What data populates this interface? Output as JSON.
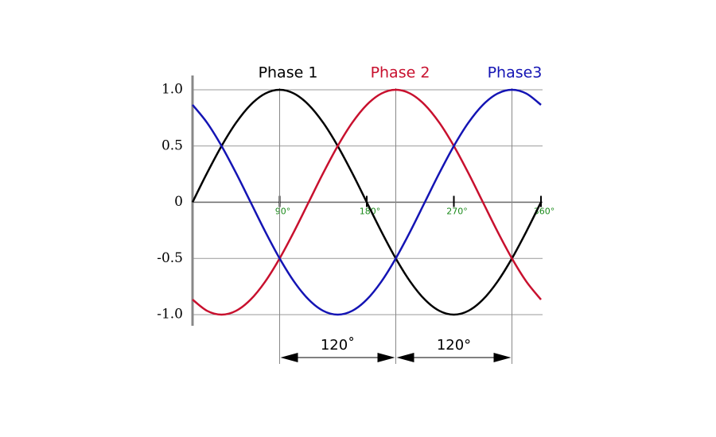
{
  "chart_data": {
    "type": "line",
    "x": [
      0,
      15,
      30,
      45,
      60,
      75,
      90,
      105,
      120,
      135,
      150,
      165,
      180,
      195,
      210,
      225,
      240,
      255,
      270,
      285,
      300,
      315,
      330,
      345,
      360
    ],
    "series": [
      {
        "name": "Phase 1",
        "color": "#000000",
        "values": [
          0,
          0.259,
          0.5,
          0.707,
          0.866,
          0.966,
          1,
          0.966,
          0.866,
          0.707,
          0.5,
          0.259,
          0,
          -0.259,
          -0.5,
          -0.707,
          -0.866,
          -0.966,
          -1,
          -0.966,
          -0.866,
          -0.707,
          -0.5,
          -0.259,
          0
        ]
      },
      {
        "name": "Phase 2",
        "color": "#c8102e",
        "values": [
          -0.866,
          -0.966,
          -1,
          -0.966,
          -0.866,
          -0.707,
          -0.5,
          -0.259,
          0,
          0.259,
          0.5,
          0.707,
          0.866,
          0.966,
          1,
          0.966,
          0.866,
          0.707,
          0.5,
          0.259,
          0,
          -0.259,
          -0.5,
          -0.707,
          -0.866
        ]
      },
      {
        "name": "Phase3",
        "color": "#1414b4",
        "values": [
          0.866,
          0.707,
          0.5,
          0.259,
          0,
          -0.259,
          -0.5,
          -0.707,
          -0.866,
          -0.966,
          -1,
          -0.966,
          -0.866,
          -0.707,
          -0.5,
          -0.259,
          0,
          0.259,
          0.5,
          0.707,
          0.866,
          0.966,
          1,
          0.966,
          0.866
        ]
      }
    ],
    "xlim": [
      0,
      360
    ],
    "xticks": [
      {
        "value": 90,
        "label": "90°"
      },
      {
        "value": 180,
        "label": "180°"
      },
      {
        "value": 270,
        "label": "270°"
      },
      {
        "value": 360,
        "label": "360°"
      }
    ],
    "ylim": [
      -1,
      1
    ],
    "yticks": [
      {
        "value": 1,
        "label": "1.0"
      },
      0.5,
      0,
      -0.5,
      {
        "value": -1,
        "label": "-1.0"
      }
    ],
    "grid": true,
    "annotations": [
      {
        "text": "120˚",
        "from": 90,
        "to": 210
      },
      {
        "text": "120°",
        "from": 210,
        "to": 330
      }
    ]
  }
}
